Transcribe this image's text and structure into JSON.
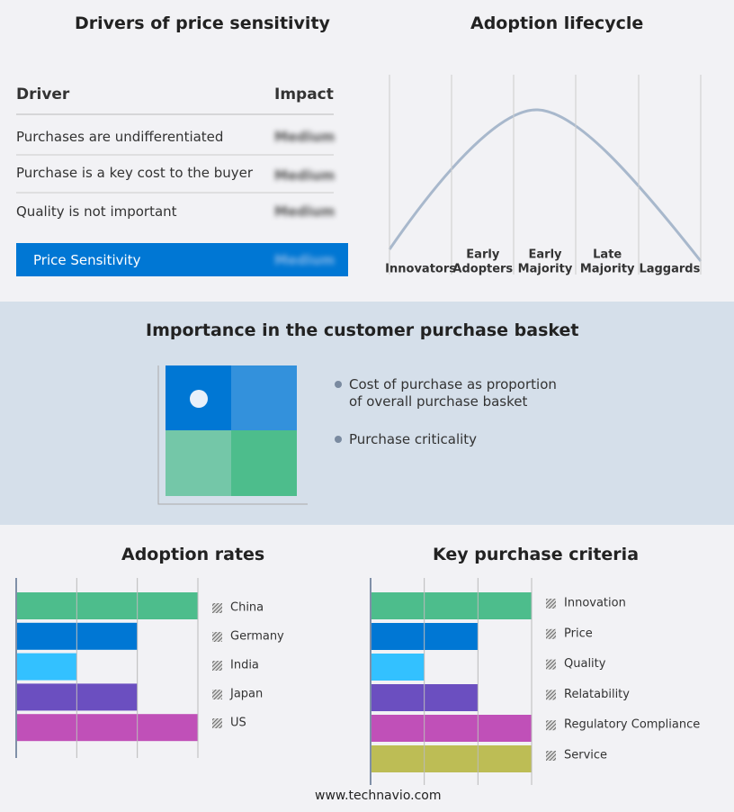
{
  "drivers": {
    "title": "Drivers of price sensitivity",
    "header": [
      "Driver",
      "Impact"
    ],
    "rows": [
      [
        "Purchases are undifferentiated",
        "Medium"
      ],
      [
        "Purchase is a key cost to the buyer",
        "Medium"
      ],
      [
        "Quality is not important",
        "Medium"
      ]
    ],
    "summary": [
      "Price Sensitivity",
      "Medium"
    ]
  },
  "lifecycle": {
    "title": "Adoption lifecycle",
    "stages": [
      [
        "Innovators"
      ],
      [
        "Early",
        "Adopters"
      ],
      [
        "Early",
        "Majority"
      ],
      [
        "Late",
        "Majority"
      ],
      [
        "Laggards"
      ]
    ]
  },
  "basket": {
    "title": "Importance in the customer purchase basket",
    "legend": [
      "Cost of purchase as proportion of overall purchase basket",
      "Purchase criticality"
    ]
  },
  "chart_data": [
    {
      "type": "bar",
      "title": "Adoption rates",
      "categories": [
        "China",
        "Germany",
        "India",
        "Japan",
        "US"
      ],
      "values": [
        3,
        2,
        1,
        2,
        3
      ],
      "colors": [
        "#4dbd8c",
        "#0077d4",
        "#33c1ff",
        "#6b4fc0",
        "#c050b8"
      ],
      "xlim": [
        0,
        3
      ],
      "xticks": [
        0,
        1,
        2,
        3
      ],
      "grid": true
    },
    {
      "type": "bar",
      "title": "Key purchase criteria",
      "categories": [
        "Innovation",
        "Price",
        "Quality",
        "Relatability",
        "Regulatory Compliance",
        "Service"
      ],
      "values": [
        3,
        2,
        1,
        2,
        3,
        3
      ],
      "colors": [
        "#4dbd8c",
        "#0077d4",
        "#33c1ff",
        "#6b4fc0",
        "#c050b8",
        "#bdbd55"
      ],
      "xlim": [
        0,
        3
      ],
      "xticks": [
        0,
        1,
        2,
        3
      ],
      "grid": true
    }
  ],
  "footer": "www.technavio.com"
}
